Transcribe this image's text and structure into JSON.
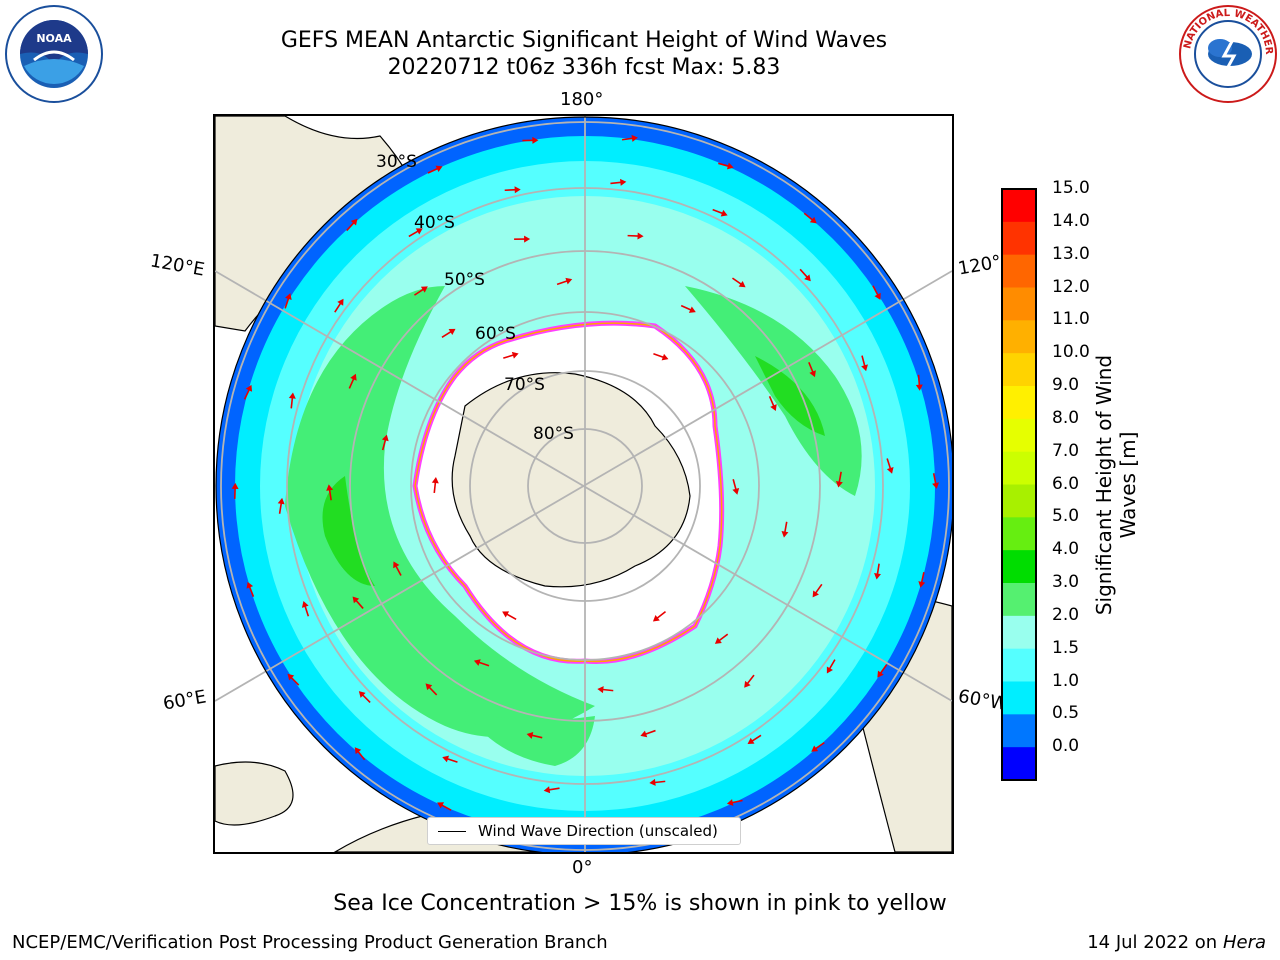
{
  "header": {
    "title_line1": "GEFS MEAN Antarctic Significant Height of Wind Waves",
    "title_line2": "20220712 t06z 336h fcst   Max: 5.83"
  },
  "map": {
    "projection": "south-polar-stereographic",
    "longitude_labels": {
      "top": "180°",
      "upper_left": "120°E",
      "upper_right": "120°",
      "lower_left": "60°E",
      "lower_right": "60°W",
      "bottom": "0°"
    },
    "latitude_labels": [
      "30°S",
      "40°S",
      "50°S",
      "60°S",
      "70°S",
      "80°S"
    ],
    "legend_label": "Wind Wave Direction (unscaled)",
    "arrow_color": "#e80000",
    "land_color": "#efecdc",
    "sea_ice_colors": [
      "#ff3fff",
      "#ffa500",
      "#ffff00"
    ]
  },
  "colorbar": {
    "title": "Significant Height of Wind Waves [m]",
    "title_line1": "Significant Height of Wind",
    "title_line2": "Waves [m]",
    "ticks": [
      "15.0",
      "14.0",
      "13.0",
      "12.0",
      "11.0",
      "10.0",
      "9.0",
      "8.0",
      "7.0",
      "6.0",
      "5.0",
      "4.0",
      "3.0",
      "2.0",
      "1.5",
      "1.0",
      "0.5",
      "0.0"
    ],
    "colors_top_to_bottom": [
      "#ff0000",
      "#ff3300",
      "#ff6600",
      "#ff8c00",
      "#ffb000",
      "#ffd300",
      "#fff000",
      "#e6ff00",
      "#ccff00",
      "#a8f000",
      "#66ee11",
      "#00dd00",
      "#55f070",
      "#99ffee",
      "#55ffff",
      "#00eeff",
      "#0077ff",
      "#0000ff"
    ]
  },
  "logos": {
    "left": "NOAA",
    "right": "NATIONAL WEATHER SERVICE"
  },
  "footer": {
    "note": "Sea Ice Concentration > 15% is shown in pink to yellow",
    "left": "NCEP/EMC/Verification Post Processing Product Generation Branch",
    "right_prefix": "14 Jul 2022 on ",
    "right_machine": "Hera"
  }
}
